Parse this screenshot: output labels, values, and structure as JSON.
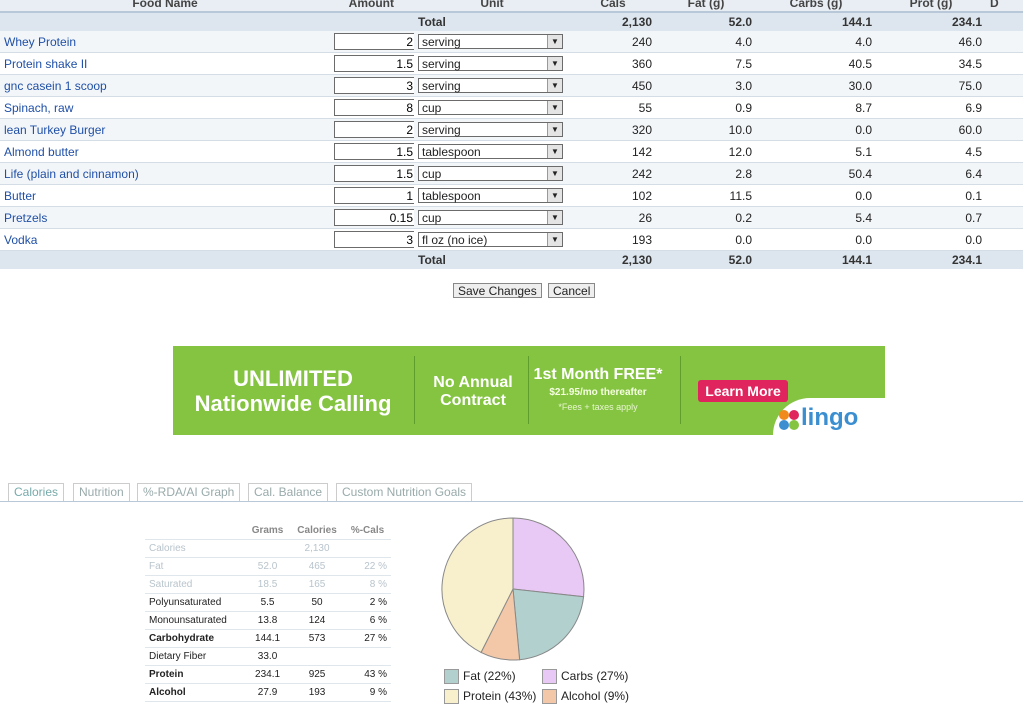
{
  "columns": {
    "food_name": "Food Name",
    "amount": "Amount",
    "unit": "Unit",
    "cals": "Cals",
    "fat": "Fat (g)",
    "carbs": "Carbs (g)",
    "prot": "Prot (g)",
    "extra": "D"
  },
  "totals": {
    "label": "Total",
    "cals": "2,130",
    "fat": "52.0",
    "carbs": "144.1",
    "prot": "234.1"
  },
  "foods": [
    {
      "name": "Whey Protein",
      "amount": "2",
      "unit": "serving",
      "cals": "240",
      "fat": "4.0",
      "carbs": "4.0",
      "prot": "46.0"
    },
    {
      "name": "Protein shake II",
      "amount": "1.5",
      "unit": "serving",
      "cals": "360",
      "fat": "7.5",
      "carbs": "40.5",
      "prot": "34.5"
    },
    {
      "name": "gnc casein 1 scoop",
      "amount": "3",
      "unit": "serving",
      "cals": "450",
      "fat": "3.0",
      "carbs": "30.0",
      "prot": "75.0"
    },
    {
      "name": "Spinach, raw",
      "amount": "8",
      "unit": "cup",
      "cals": "55",
      "fat": "0.9",
      "carbs": "8.7",
      "prot": "6.9"
    },
    {
      "name": "lean Turkey Burger",
      "amount": "2",
      "unit": "serving",
      "cals": "320",
      "fat": "10.0",
      "carbs": "0.0",
      "prot": "60.0"
    },
    {
      "name": "Almond butter",
      "amount": "1.5",
      "unit": "tablespoon",
      "cals": "142",
      "fat": "12.0",
      "carbs": "5.1",
      "prot": "4.5"
    },
    {
      "name": "Life (plain and cinnamon)",
      "amount": "1.5",
      "unit": "cup",
      "cals": "242",
      "fat": "2.8",
      "carbs": "50.4",
      "prot": "6.4"
    },
    {
      "name": "Butter",
      "amount": "1",
      "unit": "tablespoon",
      "cals": "102",
      "fat": "11.5",
      "carbs": "0.0",
      "prot": "0.1"
    },
    {
      "name": "Pretzels",
      "amount": "0.15",
      "unit": "cup",
      "cals": "26",
      "fat": "0.2",
      "carbs": "5.4",
      "prot": "0.7"
    },
    {
      "name": "Vodka",
      "amount": "3",
      "unit": "fl oz (no ice)",
      "cals": "193",
      "fat": "0.0",
      "carbs": "0.0",
      "prot": "0.0"
    }
  ],
  "buttons": {
    "save": "Save Changes",
    "cancel": "Cancel"
  },
  "ad": {
    "headline_1": "UNLIMITED",
    "headline_2": "Nationwide Calling",
    "middle_1": "No Annual",
    "middle_2": "Contract",
    "offer": "1st Month FREE*",
    "price": "$21.95/mo thereafter",
    "fees": "*Fees + taxes apply",
    "cta": "Learn More",
    "brand": "lingo"
  },
  "tabs": [
    "Calories",
    "Nutrition",
    "%-RDA/AI Graph",
    "Cal. Balance",
    "Custom Nutrition Goals"
  ],
  "summary": {
    "headers": [
      "",
      "Grams",
      "Calories",
      "%-Cals"
    ],
    "rows": [
      {
        "label": "Calories",
        "grams": "",
        "calories": "2,130",
        "pct": "",
        "style": "faded"
      },
      {
        "label": "Fat",
        "grams": "52.0",
        "calories": "465",
        "pct": "22 %",
        "style": "faded"
      },
      {
        "label": "Saturated",
        "grams": "18.5",
        "calories": "165",
        "pct": "8 %",
        "style": "faded ind"
      },
      {
        "label": "Polyunsaturated",
        "grams": "5.5",
        "calories": "50",
        "pct": "2 %",
        "style": "ind"
      },
      {
        "label": "Monounsaturated",
        "grams": "13.8",
        "calories": "124",
        "pct": "6 %",
        "style": "ind"
      },
      {
        "label": "Carbohydrate",
        "grams": "144.1",
        "calories": "573",
        "pct": "27 %",
        "style": "bold"
      },
      {
        "label": "Dietary Fiber",
        "grams": "33.0",
        "calories": "",
        "pct": "",
        "style": "ind"
      },
      {
        "label": "Protein",
        "grams": "234.1",
        "calories": "925",
        "pct": "43 %",
        "style": "bold"
      },
      {
        "label": "Alcohol",
        "grams": "27.9",
        "calories": "193",
        "pct": "9 %",
        "style": "bold"
      }
    ]
  },
  "chart_data": {
    "type": "pie",
    "categories": [
      "Fat",
      "Carbs",
      "Protein",
      "Alcohol"
    ],
    "values": [
      22,
      27,
      43,
      9
    ],
    "legend": [
      "Fat  (22%)",
      "Carbs  (27%)",
      "Protein  (43%)",
      "Alcohol  (9%)"
    ],
    "colors": [
      "#b2d0ce",
      "#e8c8f4",
      "#f8efcc",
      "#f2c8a8"
    ]
  }
}
